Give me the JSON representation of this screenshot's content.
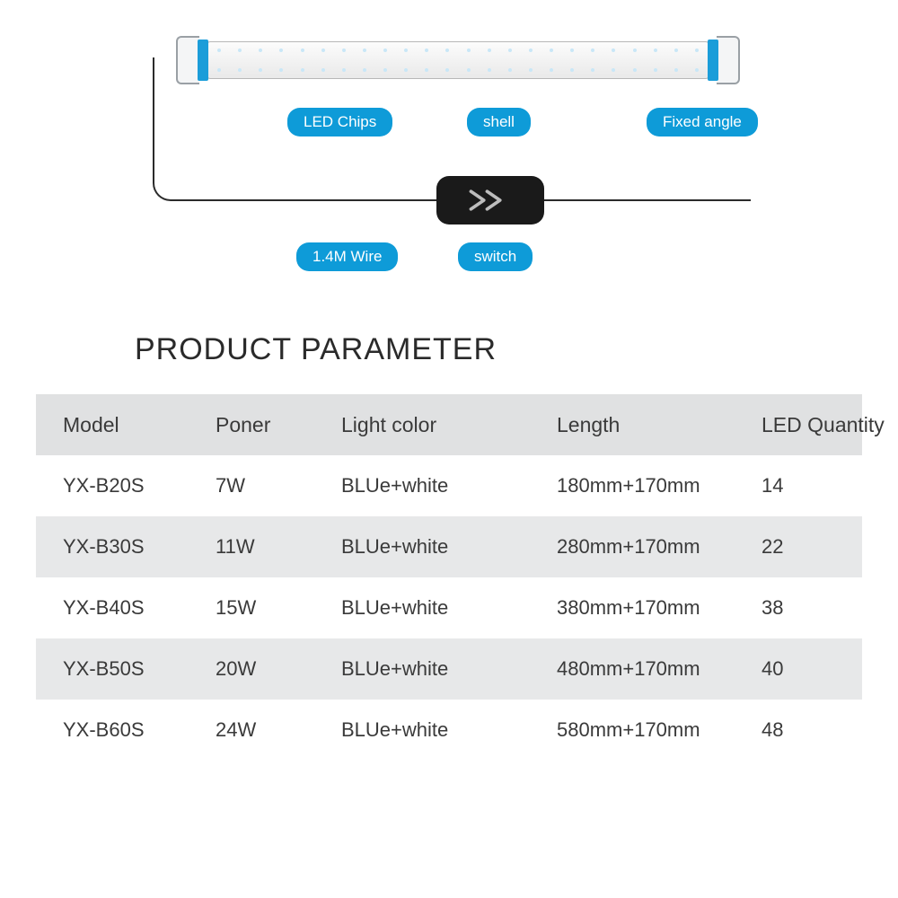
{
  "labels": {
    "led_chips": "LED Chips",
    "shell": "shell",
    "fixed_angle": "Fixed angle",
    "wire": "1.4M Wire",
    "switch": "switch"
  },
  "title": "PRODUCT PARAMETER",
  "colors": {
    "pill_bg": "#0e9bd8",
    "pill_text": "#ffffff",
    "row_shade": "#e7e8e9",
    "text": "#3a3a3a",
    "switch_bg": "#1a1a1a",
    "wire": "#2b2b2b"
  },
  "table": {
    "columns": [
      "Model",
      "Poner",
      "Light color",
      "Length",
      "LED Quantity"
    ],
    "rows": [
      [
        "YX-B20S",
        "7W",
        "BLUe+white",
        "180mm+170mm",
        "14"
      ],
      [
        "YX-B30S",
        "11W",
        "BLUe+white",
        "280mm+170mm",
        "22"
      ],
      [
        "YX-B40S",
        "15W",
        "BLUe+white",
        "380mm+170mm",
        "38"
      ],
      [
        "YX-B50S",
        "20W",
        "BLUe+white",
        "480mm+170mm",
        "40"
      ],
      [
        "YX-B60S",
        "24W",
        "BLUe+white",
        "580mm+170mm",
        "48"
      ]
    ]
  },
  "diagram": {
    "led_columns": 24
  }
}
